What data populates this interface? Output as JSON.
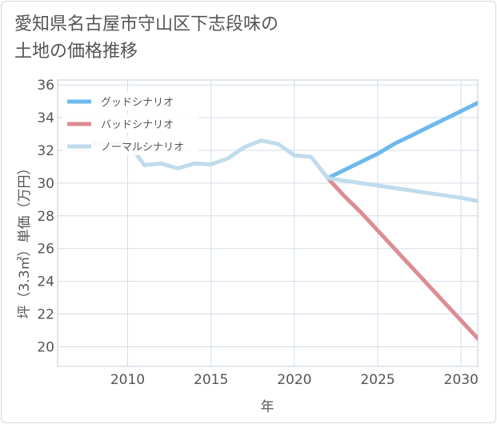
{
  "title": {
    "line1": "愛知県名古屋市守山区下志段味の",
    "line2": "土地の価格推移"
  },
  "chart_data": {
    "type": "line",
    "xlabel": "年",
    "ylabel": "坪（3.3㎡）単価（万円）",
    "xlim": [
      2005.8,
      2031
    ],
    "ylim": [
      18.8,
      36.3
    ],
    "xticks": [
      2010,
      2015,
      2020,
      2025,
      2030
    ],
    "yticks": [
      20,
      22,
      24,
      26,
      28,
      30,
      32,
      34,
      36
    ],
    "grid": true,
    "legend_position": "top-left",
    "series": [
      {
        "name": "グッドシナリオ",
        "color": "#6cb9ed",
        "x": [
          2022,
          2023,
          2024,
          2025,
          2026,
          2027,
          2028,
          2029,
          2030,
          2031
        ],
        "y": [
          30.3,
          30.8,
          31.3,
          31.8,
          32.4,
          32.9,
          33.4,
          33.9,
          34.4,
          34.9
        ]
      },
      {
        "name": "バッドシナリオ",
        "color": "#dc8c93",
        "x": [
          2022,
          2023,
          2024,
          2025,
          2026,
          2027,
          2028,
          2029,
          2030,
          2031
        ],
        "y": [
          30.3,
          29.2,
          28.2,
          27.1,
          26.0,
          24.9,
          23.8,
          22.7,
          21.6,
          20.5
        ]
      },
      {
        "name": "ノーマルシナリオ",
        "color": "#bfdcec",
        "x": [
          2008,
          2009,
          2010,
          2011,
          2012,
          2013,
          2014,
          2015,
          2016,
          2017,
          2018,
          2019,
          2020,
          2021,
          2022,
          2023,
          2024,
          2025,
          2026,
          2027,
          2028,
          2029,
          2030,
          2031
        ],
        "y": [
          32.4,
          32.4,
          32.5,
          31.1,
          31.2,
          30.9,
          31.2,
          31.15,
          31.5,
          32.2,
          32.6,
          32.4,
          31.7,
          31.6,
          30.3,
          30.15,
          30.0,
          29.85,
          29.7,
          29.55,
          29.4,
          29.25,
          29.1,
          28.9
        ]
      }
    ]
  }
}
